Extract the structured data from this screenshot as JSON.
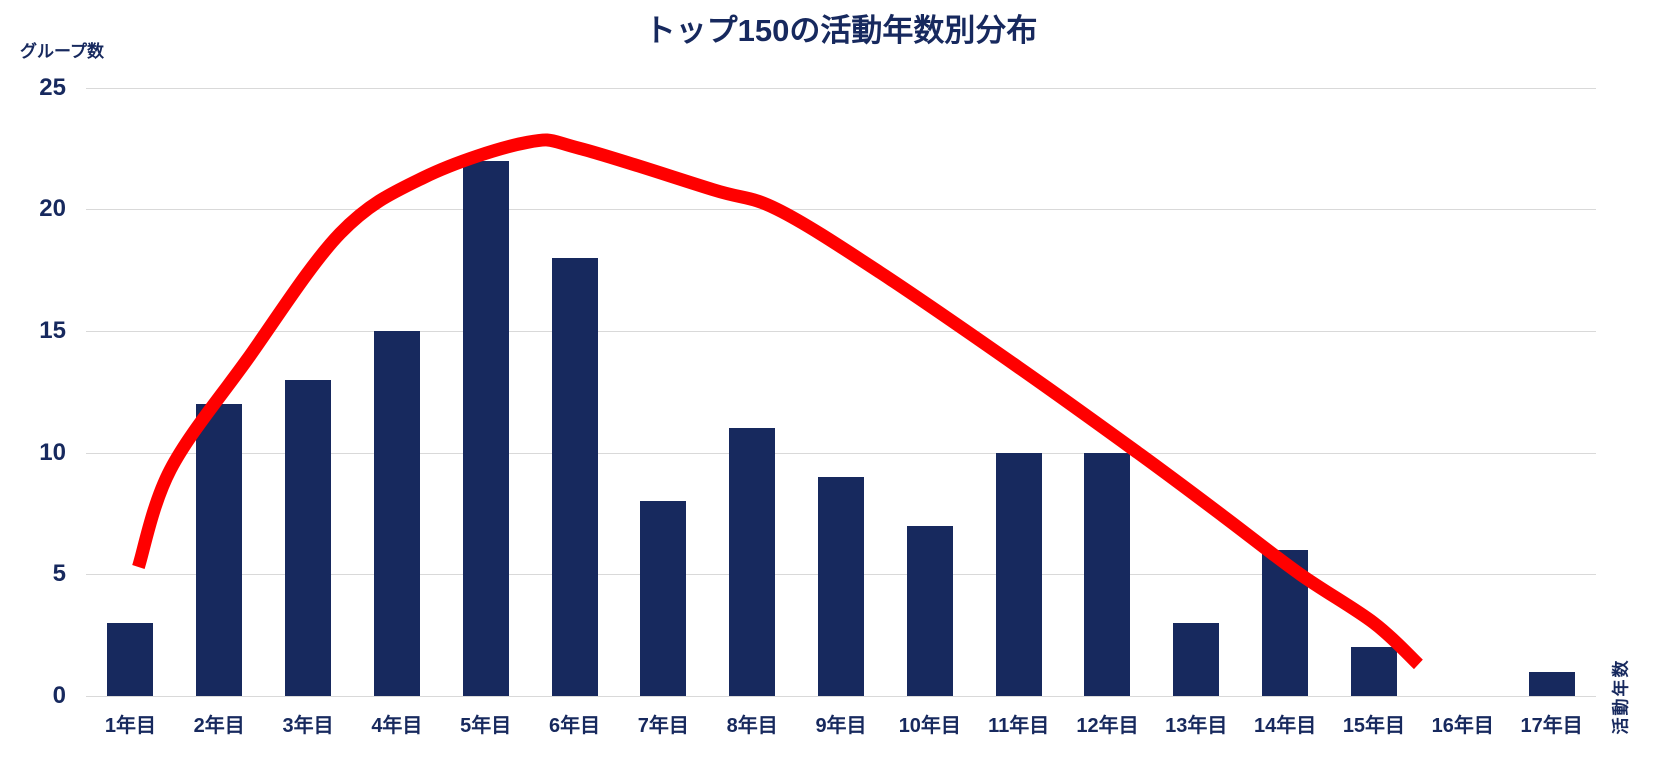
{
  "chart": {
    "colors": {
      "bar": "#17295E",
      "trendline": "#FF0000",
      "grid": "#D9D9D9",
      "text": "#17295E",
      "background": "#FFFFFF"
    }
  },
  "chart_data": {
    "type": "bar",
    "title": "トップ150の活動年数別分布",
    "categories": [
      "1年目",
      "2年目",
      "3年目",
      "4年目",
      "5年目",
      "6年目",
      "7年目",
      "8年目",
      "9年目",
      "10年目",
      "11年目",
      "12年目",
      "13年目",
      "14年目",
      "15年目",
      "16年目",
      "17年目"
    ],
    "values": [
      3,
      12,
      13,
      15,
      22,
      18,
      8,
      11,
      9,
      7,
      10,
      10,
      3,
      6,
      2,
      0,
      1
    ],
    "total": 150,
    "xlabel": "活動年数",
    "ylabel": "グループ数",
    "ylim": [
      0,
      25
    ],
    "y_ticks": [
      0,
      5,
      10,
      15,
      20,
      25
    ],
    "grid": true,
    "legend": false,
    "trendline_points_year_value": [
      [
        1.09,
        5.3
      ],
      [
        1.45,
        9.3
      ],
      [
        2.31,
        13.8
      ],
      [
        3.36,
        19.0
      ],
      [
        4.3,
        21.3
      ],
      [
        5.47,
        22.75
      ],
      [
        6.06,
        22.5
      ],
      [
        7.56,
        20.8
      ],
      [
        8.28,
        20.0
      ],
      [
        9.44,
        17.4
      ],
      [
        11.0,
        13.5
      ],
      [
        12.34,
        10.0
      ],
      [
        13.3,
        7.4
      ],
      [
        14.17,
        5.0
      ],
      [
        15.0,
        3.0
      ],
      [
        15.5,
        1.3
      ]
    ]
  }
}
